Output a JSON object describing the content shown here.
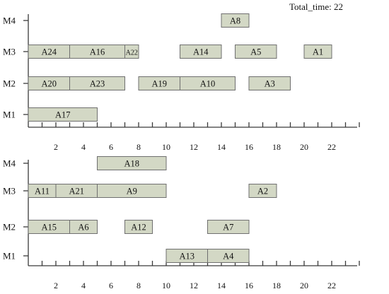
{
  "header": {
    "total_time": "Total_time: 22"
  },
  "chart_data": [
    {
      "type": "gantt",
      "machines": [
        "M1",
        "M2",
        "M3",
        "M4"
      ],
      "xticks": [
        2,
        4,
        6,
        8,
        10,
        12,
        14,
        16,
        18,
        20,
        22
      ],
      "xlim": [
        0,
        24
      ],
      "tasks": [
        {
          "label": "A17",
          "machine": "M1",
          "start": 0,
          "end": 5
        },
        {
          "label": "A20",
          "machine": "M2",
          "start": 0,
          "end": 3
        },
        {
          "label": "A23",
          "machine": "M2",
          "start": 3,
          "end": 7
        },
        {
          "label": "A19",
          "machine": "M2",
          "start": 8,
          "end": 11
        },
        {
          "label": "A10",
          "machine": "M2",
          "start": 11,
          "end": 15
        },
        {
          "label": "A3",
          "machine": "M2",
          "start": 16,
          "end": 19
        },
        {
          "label": "A24",
          "machine": "M3",
          "start": 0,
          "end": 3
        },
        {
          "label": "A16",
          "machine": "M3",
          "start": 3,
          "end": 7
        },
        {
          "label": "A22",
          "machine": "M3",
          "start": 7,
          "end": 8
        },
        {
          "label": "A14",
          "machine": "M3",
          "start": 11,
          "end": 14
        },
        {
          "label": "A5",
          "machine": "M3",
          "start": 15,
          "end": 18
        },
        {
          "label": "A1",
          "machine": "M3",
          "start": 20,
          "end": 22
        },
        {
          "label": "A8",
          "machine": "M4",
          "start": 14,
          "end": 16
        }
      ]
    },
    {
      "type": "gantt",
      "machines": [
        "M1",
        "M2",
        "M3",
        "M4"
      ],
      "xticks": [
        2,
        4,
        6,
        8,
        10,
        12,
        14,
        16,
        18,
        20,
        22
      ],
      "xlim": [
        0,
        24
      ],
      "tasks": [
        {
          "label": "A13",
          "machine": "M1",
          "start": 10,
          "end": 13
        },
        {
          "label": "A4",
          "machine": "M1",
          "start": 13,
          "end": 16
        },
        {
          "label": "A15",
          "machine": "M2",
          "start": 0,
          "end": 3
        },
        {
          "label": "A6",
          "machine": "M2",
          "start": 3,
          "end": 5
        },
        {
          "label": "A12",
          "machine": "M2",
          "start": 7,
          "end": 9
        },
        {
          "label": "A7",
          "machine": "M2",
          "start": 13,
          "end": 16
        },
        {
          "label": "A11",
          "machine": "M3",
          "start": 0,
          "end": 2
        },
        {
          "label": "A21",
          "machine": "M3",
          "start": 2,
          "end": 5
        },
        {
          "label": "A9",
          "machine": "M3",
          "start": 5,
          "end": 10
        },
        {
          "label": "A2",
          "machine": "M3",
          "start": 16,
          "end": 18
        },
        {
          "label": "A18",
          "machine": "M4",
          "start": 5,
          "end": 10
        }
      ]
    }
  ],
  "colors": {
    "bar_fill": "#d3d8c5",
    "bar_stroke": "#6f6f6f",
    "axis": "#3a3a3a"
  }
}
